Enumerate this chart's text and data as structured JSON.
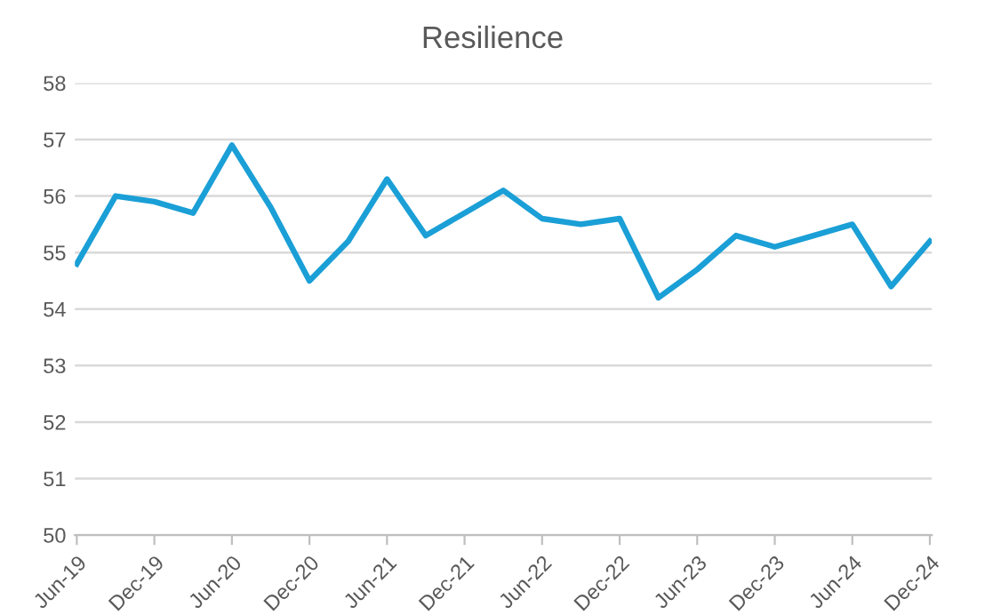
{
  "chart_data": {
    "type": "line",
    "title": "Resilience",
    "categories": [
      "Jun-19",
      null,
      "Dec-19",
      null,
      "Jun-20",
      null,
      "Dec-20",
      null,
      "Jun-21",
      null,
      "Dec-21",
      null,
      "Jun-22",
      null,
      "Dec-22",
      null,
      "Jun-23",
      null,
      "Dec-23",
      null,
      "Jun-24",
      null,
      "Dec-24"
    ],
    "series": [
      {
        "color": "#1a9fd6",
        "values": [
          54.8,
          56.0,
          55.9,
          55.7,
          56.9,
          55.8,
          54.5,
          55.2,
          56.3,
          55.3,
          55.7,
          56.1,
          55.6,
          55.5,
          55.6,
          54.2,
          54.7,
          55.3,
          55.1,
          55.3,
          55.5,
          54.4,
          55.2
        ]
      }
    ],
    "ylim": [
      50,
      58
    ],
    "yticks": [
      50,
      51,
      52,
      53,
      54,
      55,
      56,
      57,
      58
    ],
    "grid": "y",
    "marker": "none",
    "line_style": "solid",
    "legend": false
  }
}
